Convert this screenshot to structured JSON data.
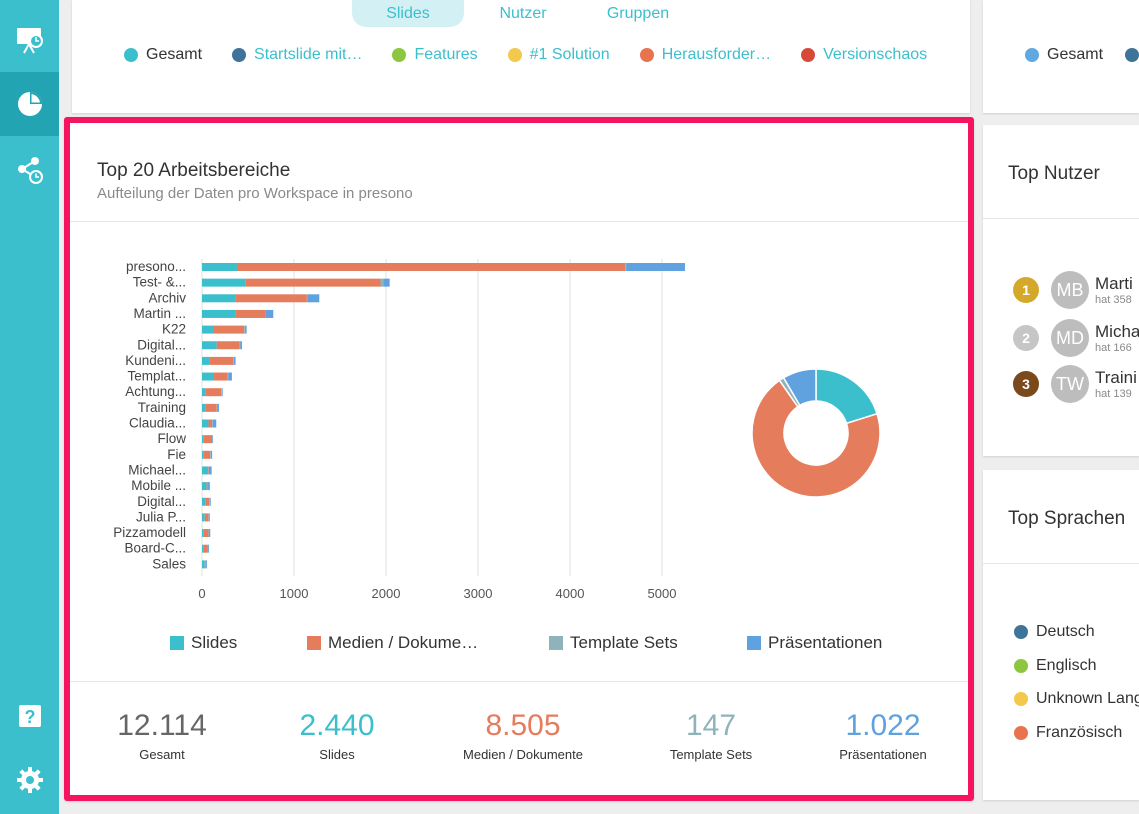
{
  "sidebar": {
    "items": [
      {
        "icon": "presentation-icon"
      },
      {
        "icon": "pie-chart-icon",
        "active": true
      },
      {
        "icon": "share-icon"
      },
      {
        "icon": "help-icon"
      },
      {
        "icon": "gear-icon"
      }
    ]
  },
  "top_card": {
    "tabs": [
      "Slides",
      "Nutzer",
      "Gruppen"
    ],
    "active_tab": "Slides",
    "legend": [
      {
        "label": "Gesamt",
        "color": "#3cbfcc"
      },
      {
        "label": "Startslide mit…",
        "color": "#3e7499"
      },
      {
        "label": "Features",
        "color": "#8dc63f"
      },
      {
        "label": "#1 Solution",
        "color": "#f2c94c"
      },
      {
        "label": "Herausforder…",
        "color": "#e8744f"
      },
      {
        "label": "Versionschaos",
        "color": "#d64a3a"
      }
    ]
  },
  "right_top": {
    "legend": [
      {
        "label": "Gesamt",
        "color": "#5fa8e0"
      },
      {
        "label": "",
        "color": "#3e7499"
      }
    ]
  },
  "main_card": {
    "title": "Top 20 Arbeitsbereiche",
    "subtitle": "Aufteilung der Daten pro Workspace in presono",
    "chart_legend": [
      {
        "label": "Slides",
        "color": "#3cbfcc"
      },
      {
        "label": "Medien / Dokume…",
        "color": "#e57c5c"
      },
      {
        "label": "Template Sets",
        "color": "#8fb3ba"
      },
      {
        "label": "Präsentationen",
        "color": "#5fa2df"
      }
    ],
    "stats": [
      {
        "value": "12.114",
        "label": "Gesamt",
        "color": "#666666"
      },
      {
        "value": "2.440",
        "label": "Slides",
        "color": "#3cbfcc"
      },
      {
        "value": "8.505",
        "label": "Medien / Dokumente",
        "color": "#e57c5c"
      },
      {
        "value": "147",
        "label": "Template Sets",
        "color": "#8fb3ba"
      },
      {
        "value": "1.022",
        "label": "Präsentationen",
        "color": "#5fa2df"
      }
    ]
  },
  "chart_data": [
    {
      "type": "bar",
      "orientation": "horizontal",
      "stacked": true,
      "categories": [
        "presono...",
        "Test- &...",
        "Archiv",
        "Martin ...",
        "K22",
        "Digital...",
        "Kundeni...",
        "Templat...",
        "Achtung...",
        "Training",
        "Claudia...",
        "Flow",
        "Fie",
        "Michael...",
        "Mobile ...",
        "Digital...",
        "Julia P...",
        "Pizzamodell",
        "Board-C...",
        "Sales"
      ],
      "series": [
        {
          "name": "Slides",
          "color": "#3cbfcc",
          "values": [
            380,
            470,
            360,
            360,
            130,
            160,
            80,
            120,
            40,
            40,
            70,
            20,
            20,
            60,
            50,
            40,
            30,
            20,
            20,
            30
          ]
        },
        {
          "name": "Medien / Dokume…",
          "color": "#e57c5c",
          "values": [
            4220,
            1470,
            780,
            330,
            330,
            250,
            260,
            160,
            170,
            120,
            40,
            90,
            70,
            10,
            10,
            40,
            40,
            50,
            40,
            10
          ]
        },
        {
          "name": "Template Sets",
          "color": "#8fb3ba",
          "values": [
            10,
            30,
            5,
            5,
            5,
            5,
            5,
            5,
            5,
            5,
            5,
            5,
            5,
            5,
            5,
            5,
            5,
            5,
            5,
            5
          ]
        },
        {
          "name": "Präsentationen",
          "color": "#5fa2df",
          "values": [
            640,
            70,
            130,
            80,
            20,
            20,
            20,
            40,
            10,
            20,
            40,
            5,
            15,
            30,
            20,
            10,
            10,
            15,
            10,
            10
          ]
        }
      ],
      "xticks": [
        0,
        1000,
        2000,
        3000,
        4000,
        5000
      ],
      "xlim": [
        0,
        5500
      ],
      "grid": true
    },
    {
      "type": "pie",
      "donut": true,
      "labels": [
        "Slides",
        "Medien / Dokumente",
        "Template Sets",
        "Präsentationen"
      ],
      "values": [
        2440,
        8505,
        147,
        1022
      ],
      "colors": [
        "#3cbfcc",
        "#e57c5c",
        "#8fb3ba",
        "#5fa2df"
      ]
    }
  ],
  "right_mid": {
    "title": "Top Nutzer",
    "users": [
      {
        "rank": "1",
        "rank_color": "#d4a82a",
        "initials": "MB",
        "name": "Marti",
        "sub": "hat 358"
      },
      {
        "rank": "2",
        "rank_color": "#c6c6c6",
        "initials": "MD",
        "name": "Micha",
        "sub": "hat 166"
      },
      {
        "rank": "3",
        "rank_color": "#7b4a1c",
        "initials": "TW",
        "name": "Traini",
        "sub": "hat 139"
      }
    ]
  },
  "right_bot": {
    "title": "Top Sprachen",
    "languages": [
      {
        "label": "Deutsch",
        "color": "#3e7499"
      },
      {
        "label": "Englisch",
        "color": "#8dc63f"
      },
      {
        "label": "Unknown Lang",
        "color": "#f2c94c"
      },
      {
        "label": "Französisch",
        "color": "#e8744f"
      }
    ]
  }
}
